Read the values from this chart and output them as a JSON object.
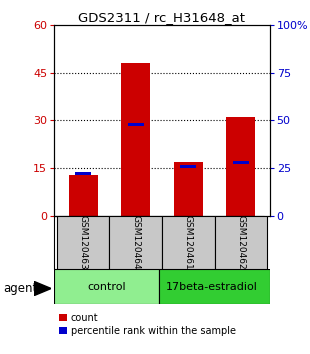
{
  "title": "GDS2311 / rc_H31648_at",
  "samples": [
    "GSM120463",
    "GSM120464",
    "GSM120461",
    "GSM120462"
  ],
  "counts": [
    13,
    48,
    17,
    31
  ],
  "percentiles": [
    22,
    48,
    26,
    28
  ],
  "bar_color": "#CC0000",
  "percentile_color": "#0000CC",
  "ylim_left": [
    0,
    60
  ],
  "ylim_right": [
    0,
    100
  ],
  "yticks_left": [
    0,
    15,
    30,
    45,
    60
  ],
  "yticks_right": [
    0,
    25,
    50,
    75,
    100
  ],
  "ytick_labels_right": [
    "0",
    "25",
    "50",
    "75",
    "100%"
  ],
  "left_axis_color": "#CC0000",
  "right_axis_color": "#0000CC",
  "bar_width": 0.55,
  "legend_count_label": "count",
  "legend_percentile_label": "percentile rank within the sample",
  "agent_label": "agent",
  "group_label_control": "control",
  "group_label_treatment": "17beta-estradiol",
  "ctrl_color": "#90EE90",
  "treat_color": "#32CD32",
  "sample_box_color": "#C8C8C8",
  "background_color": "#ffffff"
}
